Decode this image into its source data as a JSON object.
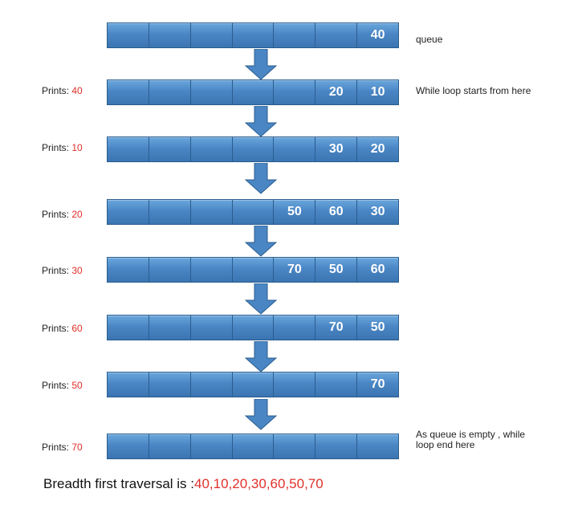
{
  "rows": [
    {
      "print_prefix": "",
      "print_value": "",
      "cells": [
        "",
        "",
        "",
        "",
        "",
        "",
        "40"
      ]
    },
    {
      "print_prefix": "Prints: ",
      "print_value": "40",
      "cells": [
        "",
        "",
        "",
        "",
        "",
        "20",
        "10"
      ]
    },
    {
      "print_prefix": "Prints: ",
      "print_value": "10",
      "cells": [
        "",
        "",
        "",
        "",
        "",
        "30",
        "20"
      ]
    },
    {
      "print_prefix": "Prints: ",
      "print_value": "20",
      "cells": [
        "",
        "",
        "",
        "",
        "50",
        "60",
        "30"
      ]
    },
    {
      "print_prefix": "Prints: ",
      "print_value": "30",
      "cells": [
        "",
        "",
        "",
        "",
        "70",
        "50",
        "60"
      ]
    },
    {
      "print_prefix": "Prints: ",
      "print_value": "60",
      "cells": [
        "",
        "",
        "",
        "",
        "",
        "70",
        "50"
      ]
    },
    {
      "print_prefix": "Prints: ",
      "print_value": "50",
      "cells": [
        "",
        "",
        "",
        "",
        "",
        "",
        "70"
      ]
    },
    {
      "print_prefix": "Prints: ",
      "print_value": "70",
      "cells": [
        "",
        "",
        "",
        "",
        "",
        "",
        ""
      ]
    }
  ],
  "notes": {
    "queue": "queue",
    "loop_start": "While loop starts from here",
    "loop_end_line1": "As queue is empty , while",
    "loop_end_line2": "loop end here"
  },
  "result": {
    "prefix": "Breadth first traversal is :",
    "sequence": "40,10,20,30,60,50,70"
  },
  "colors": {
    "cell_fill": "#4a86c4",
    "cell_border": "#2a5d8e",
    "arrow_fill": "#4a86c4",
    "highlight_red": "#e0302a"
  }
}
